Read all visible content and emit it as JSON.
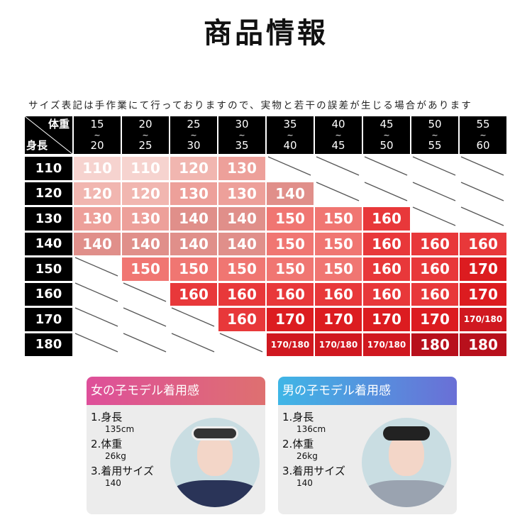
{
  "title": "商品情報",
  "note": "サイズ表記は手作業にて行っておりますので、実物と若干の誤差が生じる場合があります",
  "table": {
    "corner_weight": "体重",
    "corner_height": "身長",
    "weights": [
      [
        "15",
        "20"
      ],
      [
        "20",
        "25"
      ],
      [
        "25",
        "30"
      ],
      [
        "30",
        "35"
      ],
      [
        "35",
        "40"
      ],
      [
        "40",
        "45"
      ],
      [
        "45",
        "50"
      ],
      [
        "50",
        "55"
      ],
      [
        "55",
        "60"
      ]
    ],
    "tilde": "~",
    "heights": [
      "110",
      "120",
      "130",
      "140",
      "150",
      "160",
      "170",
      "180"
    ],
    "rows": [
      [
        "110",
        "110",
        "120",
        "130",
        null,
        null,
        null,
        null,
        null
      ],
      [
        "120",
        "120",
        "130",
        "130",
        "140",
        null,
        null,
        null,
        null
      ],
      [
        "130",
        "130",
        "140",
        "140",
        "150",
        "150",
        "160",
        null,
        null
      ],
      [
        "140",
        "140",
        "140",
        "140",
        "150",
        "150",
        "160",
        "160",
        "160"
      ],
      [
        null,
        "150",
        "150",
        "150",
        "150",
        "150",
        "160",
        "160",
        "170"
      ],
      [
        null,
        null,
        "160",
        "160",
        "160",
        "160",
        "160",
        "160",
        "170"
      ],
      [
        null,
        null,
        null,
        "160",
        "170",
        "170",
        "170",
        "170",
        "170/180"
      ],
      [
        null,
        null,
        null,
        null,
        "170/180",
        "170/180",
        "170/180",
        "180",
        "180"
      ]
    ]
  },
  "girl": {
    "heading": "女の子モデル着用感",
    "l1": "1.身長",
    "v1": "135cm",
    "l2": "2.体重",
    "v2": "26kg",
    "l3": "3.着用サイズ",
    "v3": "140",
    "colors": [
      "#de4f9a",
      "#de7070"
    ]
  },
  "boy": {
    "heading": "男の子モデル着用感",
    "l1": "1.身長",
    "v1": "136cm",
    "l2": "2.体重",
    "v2": "26kg",
    "l3": "3.着用サイズ",
    "v3": "140",
    "colors": [
      "#3fb6e6",
      "#6a6fd6"
    ]
  }
}
